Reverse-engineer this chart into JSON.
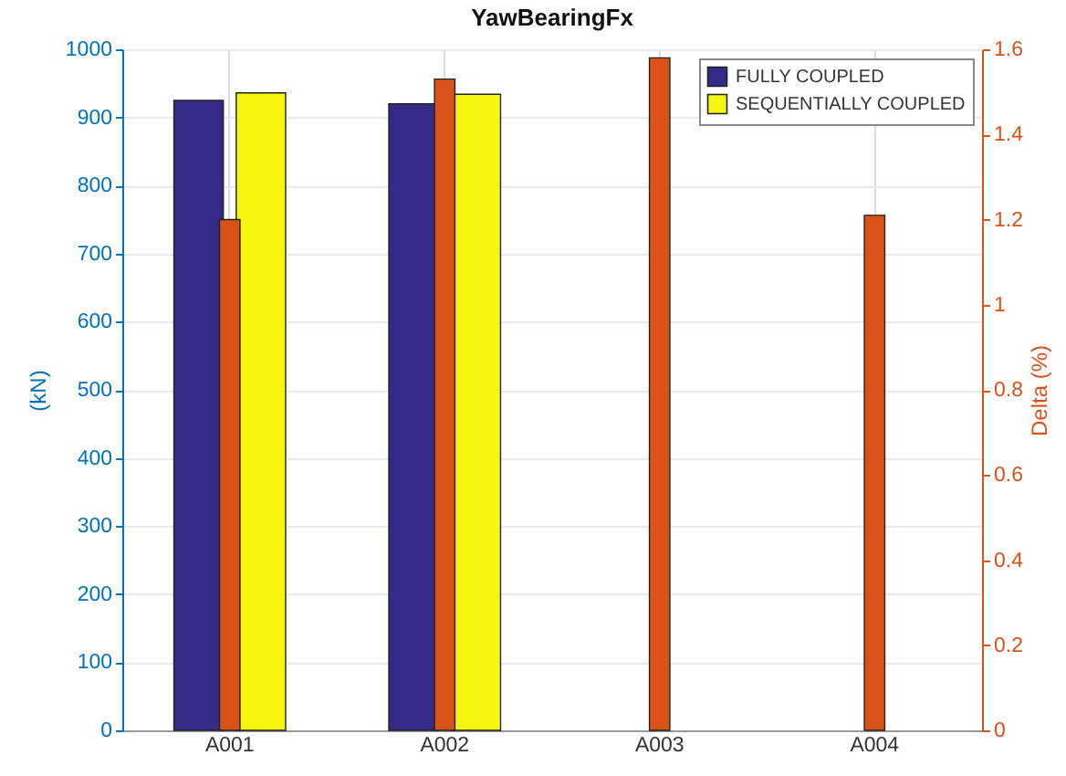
{
  "chart_data": {
    "type": "bar",
    "title": "YawBearingFx",
    "ylabel": "(kN)",
    "y2label": "Delta (%)",
    "categories": [
      "A001",
      "A002",
      "A003",
      "A004"
    ],
    "series": [
      {
        "name": "FULLY COUPLED",
        "color": "#352a87",
        "values": [
          925,
          920,
          null,
          null
        ]
      },
      {
        "name": "SEQUENTIALLY COUPLED",
        "color": "#f5f50f",
        "values": [
          936,
          934,
          null,
          null
        ]
      },
      {
        "color": "#d95319",
        "values": [
          1.2,
          1.53,
          1.58,
          1.21
        ],
        "axis": "y2"
      }
    ],
    "ylim": [
      0,
      1000
    ],
    "yticks": [
      0,
      100,
      200,
      300,
      400,
      500,
      600,
      700,
      800,
      900,
      1000
    ],
    "y2lim": [
      0,
      1.6
    ],
    "y2ticks": [
      0,
      0.2,
      0.4,
      0.6,
      0.8,
      1,
      1.2,
      1.4,
      1.6
    ],
    "grid": true,
    "legend": "top right"
  }
}
